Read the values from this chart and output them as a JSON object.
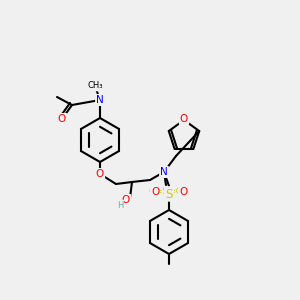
{
  "bg_color": "#f0f0f0",
  "bond_color": "#000000",
  "bond_lw": 1.5,
  "atom_colors": {
    "N": "#0000ff",
    "O": "#ff0000",
    "S": "#cccc00",
    "H": "#6fa8a8",
    "C": "#000000"
  },
  "font_size": 7.5,
  "font_size_small": 6.5
}
